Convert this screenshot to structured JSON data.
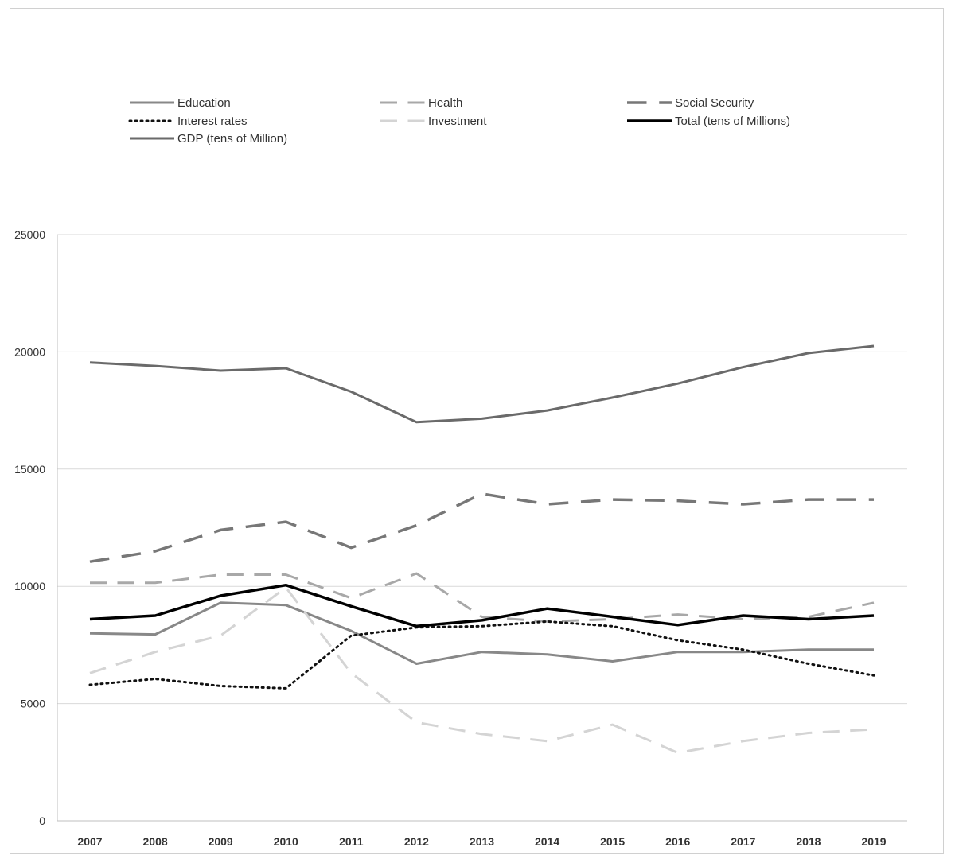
{
  "chart_data": {
    "type": "line",
    "x": [
      "2007",
      "2008",
      "2009",
      "2010",
      "2011",
      "2012",
      "2013",
      "2014",
      "2015",
      "2016",
      "2017",
      "2018",
      "2019"
    ],
    "ylim": [
      0,
      25000
    ],
    "yticks": [
      "0",
      "5000",
      "10000",
      "15000",
      "20000",
      "25000"
    ],
    "ytick_values": [
      0,
      5000,
      10000,
      15000,
      20000,
      25000
    ],
    "grid": true,
    "legend_position": "top",
    "series": [
      {
        "name": "Education",
        "style": "solid",
        "color": "#888888",
        "width": 3,
        "values": [
          8000,
          7950,
          9300,
          9200,
          8100,
          6700,
          7200,
          7100,
          6800,
          7200,
          7200,
          7300,
          7300
        ]
      },
      {
        "name": "Health",
        "style": "dash",
        "color": "#a8a8a8",
        "width": 3,
        "values": [
          10150,
          10150,
          10500,
          10500,
          9500,
          10550,
          8700,
          8500,
          8600,
          8800,
          8600,
          8700,
          9300
        ]
      },
      {
        "name": "Social Security",
        "style": "dash",
        "color": "#777777",
        "width": 3.5,
        "values": [
          11050,
          11500,
          12400,
          12750,
          11650,
          12600,
          13950,
          13500,
          13700,
          13650,
          13500,
          13700,
          13700
        ]
      },
      {
        "name": "Interest rates",
        "style": "dot",
        "color": "#111111",
        "width": 3,
        "values": [
          5800,
          6050,
          5750,
          5650,
          7900,
          8250,
          8300,
          8500,
          8300,
          7700,
          7300,
          6700,
          6200
        ]
      },
      {
        "name": "Investment",
        "style": "dash",
        "color": "#d4d4d4",
        "width": 3,
        "values": [
          6300,
          7200,
          7900,
          9950,
          6300,
          4200,
          3700,
          3400,
          4100,
          2900,
          3400,
          3750,
          3900
        ]
      },
      {
        "name": "Total (tens of Millions)",
        "style": "solid",
        "color": "#000000",
        "width": 3.5,
        "values": [
          8600,
          8750,
          9600,
          10050,
          9150,
          8300,
          8550,
          9050,
          8700,
          8350,
          8750,
          8600,
          8750
        ]
      },
      {
        "name": "GDP (tens of Million)",
        "style": "solid",
        "color": "#6a6a6a",
        "width": 3,
        "values": [
          19550,
          19400,
          19200,
          19300,
          18300,
          17000,
          17150,
          17500,
          18050,
          18650,
          19350,
          19950,
          20250
        ]
      }
    ]
  }
}
